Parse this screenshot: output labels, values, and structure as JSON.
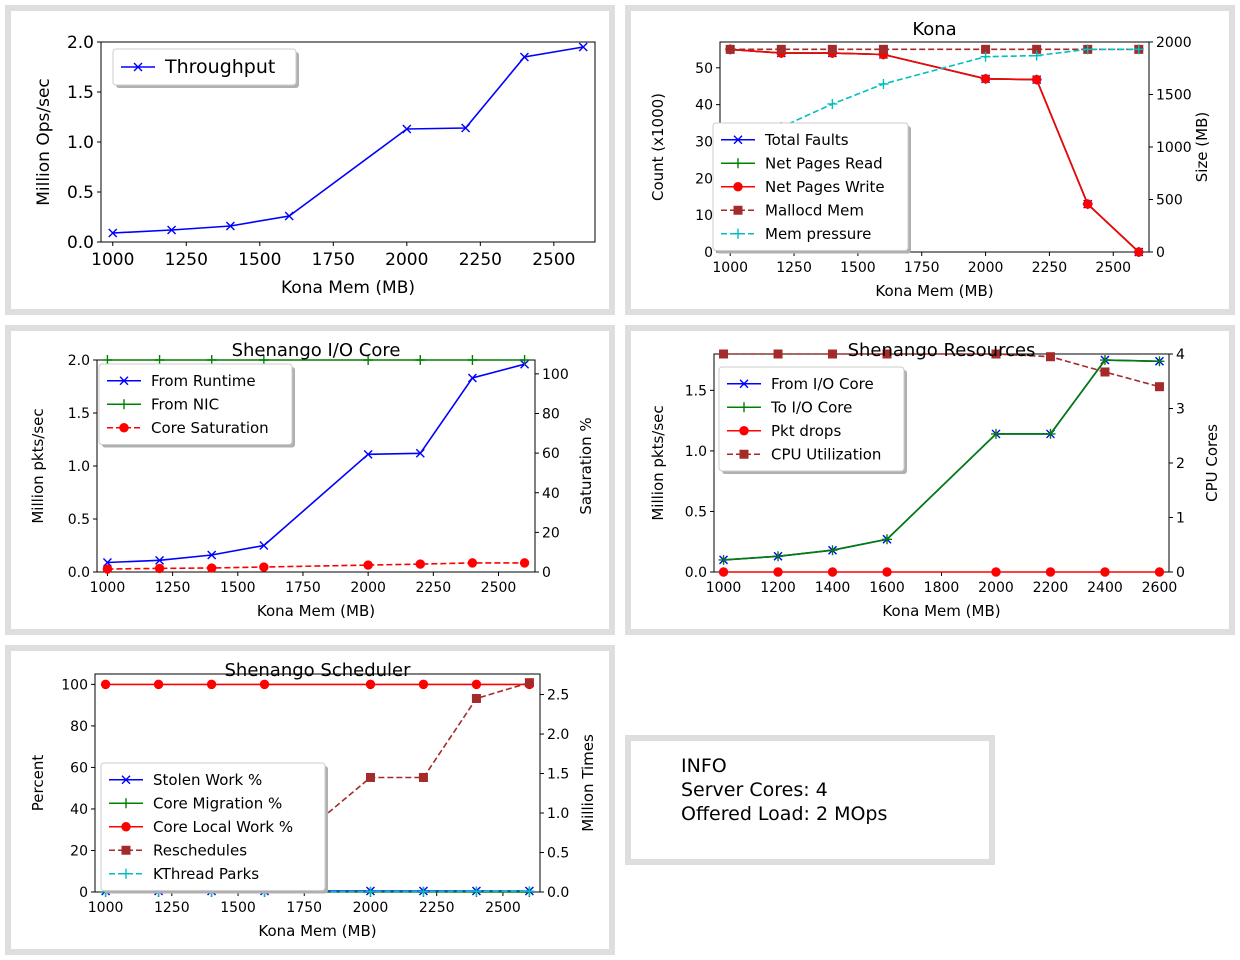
{
  "info": {
    "title": "INFO",
    "server_cores": "Server Cores: 4",
    "offered_load": "Offered Load: 2 MOps"
  },
  "chart_data": [
    {
      "id": "throughput",
      "type": "line",
      "title": "",
      "xlabel": "Kona Mem (MB)",
      "ylabel": "Million Ops/sec",
      "xlim": [
        960,
        2640
      ],
      "ylim": [
        0,
        2.0
      ],
      "xticks": [
        1000,
        1250,
        1500,
        1750,
        2000,
        2250,
        2500
      ],
      "yticks": [
        0.0,
        0.5,
        1.0,
        1.5,
        2.0
      ],
      "yticklabels": [
        "0.0",
        "0.5",
        "1.0",
        "1.5",
        "2.0"
      ],
      "legend": "top-left",
      "series": [
        {
          "name": "Throughput",
          "axis": "left",
          "color": "#0000ff",
          "marker": "x",
          "dash": "solid",
          "x": [
            1000,
            1200,
            1400,
            1600,
            2000,
            2200,
            2400,
            2600
          ],
          "y": [
            0.09,
            0.12,
            0.16,
            0.26,
            1.13,
            1.14,
            1.85,
            1.95
          ]
        }
      ]
    },
    {
      "id": "kona",
      "type": "line",
      "title": "Kona",
      "xlabel": "Kona Mem (MB)",
      "ylabel": "Count (x1000)",
      "y2label": "Size (MB)",
      "xlim": [
        960,
        2640
      ],
      "ylim": [
        0,
        57
      ],
      "y2lim": [
        0,
        2000
      ],
      "xticks": [
        1000,
        1250,
        1500,
        1750,
        2000,
        2250,
        2500
      ],
      "yticks": [
        0,
        10,
        20,
        30,
        40,
        50
      ],
      "y2ticks": [
        0,
        500,
        1000,
        1500,
        2000
      ],
      "legend": "center-left",
      "series": [
        {
          "name": "Total Faults",
          "axis": "left",
          "color": "#0000ff",
          "marker": "x",
          "dash": "solid",
          "x": [
            1000,
            1200,
            1400,
            1600,
            2000,
            2200,
            2400,
            2600
          ],
          "y": [
            55,
            54,
            54,
            53.6,
            47,
            46.8,
            13,
            0
          ]
        },
        {
          "name": "Net Pages Read",
          "axis": "left",
          "color": "#008000",
          "marker": "+",
          "dash": "solid",
          "x": [
            1000,
            1200,
            1400,
            1600,
            2000,
            2200,
            2400,
            2600
          ],
          "y": [
            55,
            54,
            54,
            53.6,
            47,
            46.8,
            13,
            0
          ]
        },
        {
          "name": "Net Pages Write",
          "axis": "left",
          "color": "#ff0000",
          "marker": "o",
          "dash": "solid",
          "x": [
            1000,
            1200,
            1400,
            1600,
            2000,
            2200,
            2400,
            2600
          ],
          "y": [
            55,
            54,
            54,
            53.6,
            47,
            46.8,
            13,
            0
          ]
        },
        {
          "name": "Mallocd Mem",
          "axis": "right",
          "color": "#a52a2a",
          "marker": "s",
          "dash": "dashed",
          "x": [
            1000,
            1200,
            1400,
            1600,
            2000,
            2200,
            2400,
            2600
          ],
          "y": [
            1930,
            1930,
            1930,
            1930,
            1930,
            1930,
            1930,
            1930
          ]
        },
        {
          "name": "Mem pressure",
          "axis": "right",
          "color": "#00bfbf",
          "marker": "+",
          "dash": "dashed",
          "x": [
            1000,
            1200,
            1400,
            1600,
            2000,
            2200,
            2400,
            2600
          ],
          "y": [
            990,
            1190,
            1410,
            1600,
            1860,
            1870,
            1930,
            1930
          ]
        }
      ]
    },
    {
      "id": "iocore",
      "type": "line",
      "title": "Shenango I/O Core",
      "xlabel": "Kona Mem (MB)",
      "ylabel": "Million pkts/sec",
      "y2label": "Saturation %",
      "xlim": [
        960,
        2640
      ],
      "ylim": [
        0,
        2.0
      ],
      "y2lim": [
        0,
        107
      ],
      "xticks": [
        1000,
        1250,
        1500,
        1750,
        2000,
        2250,
        2500
      ],
      "yticks": [
        0.0,
        0.5,
        1.0,
        1.5,
        2.0
      ],
      "yticklabels": [
        "0.0",
        "0.5",
        "1.0",
        "1.5",
        "2.0"
      ],
      "y2ticks": [
        0,
        20,
        40,
        60,
        80,
        100
      ],
      "legend": "top-left",
      "series": [
        {
          "name": "From Runtime",
          "axis": "left",
          "color": "#0000ff",
          "marker": "x",
          "dash": "solid",
          "x": [
            1000,
            1200,
            1400,
            1600,
            2000,
            2200,
            2400,
            2600
          ],
          "y": [
            0.09,
            0.11,
            0.16,
            0.25,
            1.11,
            1.12,
            1.83,
            1.96
          ]
        },
        {
          "name": "From NIC",
          "axis": "left",
          "color": "#008000",
          "marker": "+",
          "dash": "solid",
          "x": [
            1000,
            1200,
            1400,
            1600,
            2000,
            2200,
            2400,
            2600
          ],
          "y": [
            2.0,
            2.0,
            2.0,
            2.0,
            2.0,
            2.0,
            2.0,
            2.0
          ]
        },
        {
          "name": "Core Saturation",
          "axis": "right",
          "color": "#ff0000",
          "marker": "o",
          "dash": "dashed",
          "x": [
            1000,
            1200,
            1400,
            1600,
            2000,
            2200,
            2400,
            2600
          ],
          "y": [
            1.5,
            1.8,
            2.0,
            2.5,
            3.5,
            4.0,
            4.6,
            4.6
          ]
        }
      ]
    },
    {
      "id": "resources",
      "type": "line",
      "title": "Shenango Resources",
      "xlabel": "Kona Mem (MB)",
      "ylabel": "Million pkts/sec",
      "y2label": "CPU Cores",
      "xlim": [
        965,
        2635
      ],
      "ylim": [
        0,
        1.8
      ],
      "y2lim": [
        0,
        4.0
      ],
      "xticks": [
        1000,
        1200,
        1400,
        1600,
        1800,
        2000,
        2200,
        2400,
        2600
      ],
      "yticks": [
        0.0,
        0.5,
        1.0,
        1.5
      ],
      "yticklabels": [
        "0.0",
        "0.5",
        "1.0",
        "1.5"
      ],
      "y2ticks": [
        0,
        1,
        2,
        3,
        4
      ],
      "legend": "top-left",
      "series": [
        {
          "name": "From I/O Core",
          "axis": "left",
          "color": "#0000ff",
          "marker": "x",
          "dash": "solid",
          "x": [
            1000,
            1200,
            1400,
            1600,
            2000,
            2200,
            2400,
            2600
          ],
          "y": [
            0.1,
            0.13,
            0.18,
            0.27,
            1.14,
            1.14,
            1.75,
            1.74
          ]
        },
        {
          "name": "To I/O Core",
          "axis": "left",
          "color": "#008000",
          "marker": "+",
          "dash": "solid",
          "x": [
            1000,
            1200,
            1400,
            1600,
            2000,
            2200,
            2400,
            2600
          ],
          "y": [
            0.1,
            0.13,
            0.18,
            0.27,
            1.14,
            1.14,
            1.75,
            1.74
          ]
        },
        {
          "name": "Pkt drops",
          "axis": "left",
          "color": "#ff0000",
          "marker": "o",
          "dash": "solid",
          "x": [
            1000,
            1200,
            1400,
            1600,
            2000,
            2200,
            2400,
            2600
          ],
          "y": [
            0,
            0,
            0,
            0,
            0,
            0,
            0,
            0
          ]
        },
        {
          "name": "CPU Utilization",
          "axis": "right",
          "color": "#a52a2a",
          "marker": "s",
          "dash": "dashed",
          "x": [
            1000,
            1200,
            1400,
            1600,
            2000,
            2200,
            2400,
            2600
          ],
          "y": [
            4.0,
            4.0,
            4.0,
            4.0,
            4.0,
            3.95,
            3.67,
            3.4
          ]
        }
      ]
    },
    {
      "id": "scheduler",
      "type": "line",
      "title": "Shenango Scheduler",
      "xlabel": "Kona Mem (MB)",
      "ylabel": "Percent",
      "y2label": "Million Times",
      "xlim": [
        960,
        2640
      ],
      "ylim": [
        0,
        105
      ],
      "y2lim": [
        0,
        2.76
      ],
      "xticks": [
        1000,
        1250,
        1500,
        1750,
        2000,
        2250,
        2500
      ],
      "yticks": [
        0,
        20,
        40,
        60,
        80,
        100
      ],
      "y2ticks": [
        0.0,
        0.5,
        1.0,
        1.5,
        2.0,
        2.5
      ],
      "y2ticklabels": [
        "0.0",
        "0.5",
        "1.0",
        "1.5",
        "2.0",
        "2.5"
      ],
      "legend": "bottom-left",
      "series": [
        {
          "name": "Stolen Work %",
          "axis": "left",
          "color": "#0000ff",
          "marker": "x",
          "dash": "solid",
          "x": [
            1000,
            1200,
            1400,
            1600,
            2000,
            2200,
            2400,
            2600
          ],
          "y": [
            0.5,
            0.5,
            0.5,
            0.5,
            0.5,
            0.5,
            0.5,
            0.5
          ]
        },
        {
          "name": "Core Migration %",
          "axis": "left",
          "color": "#008000",
          "marker": "+",
          "dash": "solid",
          "x": [
            1000,
            1200,
            1400,
            1600,
            2000,
            2200,
            2400,
            2600
          ],
          "y": [
            0,
            0,
            0,
            0,
            0,
            0,
            0,
            0
          ]
        },
        {
          "name": "Core Local Work %",
          "axis": "left",
          "color": "#ff0000",
          "marker": "o",
          "dash": "solid",
          "x": [
            1000,
            1200,
            1400,
            1600,
            2000,
            2200,
            2400,
            2600
          ],
          "y": [
            100,
            100,
            100,
            100,
            100,
            100,
            100,
            100
          ]
        },
        {
          "name": "Reschedules",
          "axis": "right",
          "color": "#a52a2a",
          "marker": "s",
          "dash": "dashed",
          "x": [
            1000,
            1200,
            1400,
            1600,
            2000,
            2200,
            2400,
            2600
          ],
          "y": [
            0.11,
            0.15,
            0.2,
            0.33,
            1.45,
            1.45,
            2.45,
            2.65
          ]
        },
        {
          "name": "KThread Parks",
          "axis": "right",
          "color": "#00bfbf",
          "marker": "+",
          "dash": "dashed",
          "x": [
            1000,
            1200,
            1400,
            1600,
            2000,
            2200,
            2400,
            2600
          ],
          "y": [
            0.003,
            0.003,
            0.003,
            0.003,
            0.005,
            0.005,
            0.008,
            0.01
          ]
        }
      ]
    }
  ]
}
